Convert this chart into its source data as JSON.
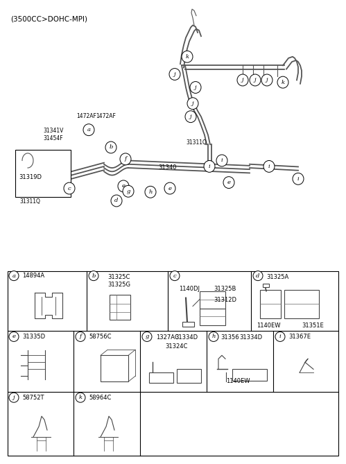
{
  "title": "(3500CC>DOHC-MPI)",
  "bg_color": "#ffffff",
  "text_color": "#000000",
  "line_color": "#555555",
  "table": {
    "row1": {
      "cells": [
        {
          "letter": "a",
          "part": "14894A"
        },
        {
          "letter": "b",
          "part": "",
          "sub": [
            "31325C",
            "31325G"
          ]
        },
        {
          "letter": "c",
          "part": "",
          "sub": [
            "1140DJ",
            "31325B",
            "31312D"
          ]
        },
        {
          "letter": "d",
          "part": "",
          "sub": [
            "31325A",
            "1140EW",
            "31351E"
          ]
        }
      ]
    },
    "row2": {
      "cells": [
        {
          "letter": "e",
          "part": "31335D"
        },
        {
          "letter": "f",
          "part": "58756C"
        },
        {
          "letter": "g",
          "part": "",
          "sub": [
            "1327AC",
            "31334D",
            "31324C"
          ]
        },
        {
          "letter": "h",
          "part": "",
          "sub": [
            "31356",
            "31334D",
            "1140EW"
          ]
        },
        {
          "letter": "i",
          "part": "31367E"
        }
      ]
    },
    "row3": {
      "cells": [
        {
          "letter": "j",
          "part": "58752T"
        },
        {
          "letter": "k",
          "part": "58964C"
        }
      ]
    }
  }
}
